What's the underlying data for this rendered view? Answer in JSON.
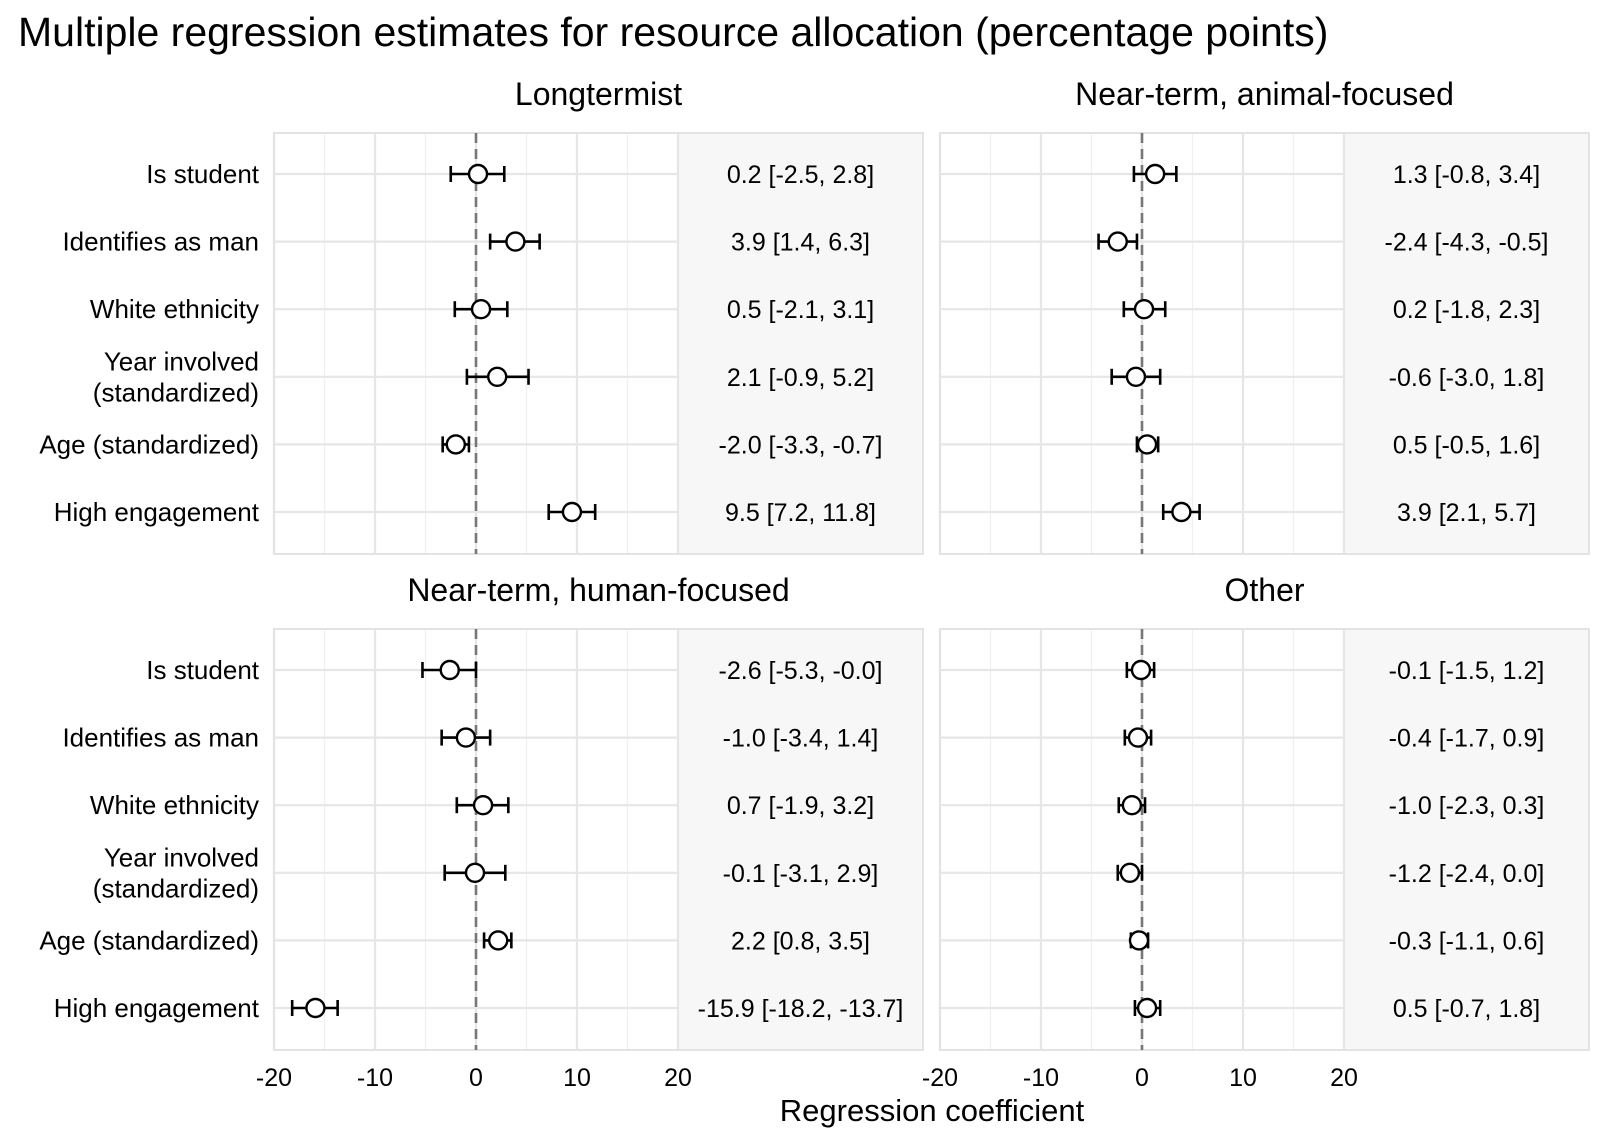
{
  "chart_data": {
    "type": "forest",
    "title": "Multiple regression estimates for resource allocation (percentage points)",
    "xlabel": "Regression coefficient",
    "xlim": [
      -20,
      20
    ],
    "xticks": [
      -20,
      -10,
      0,
      10,
      20
    ],
    "tick_labels": [
      "-20",
      "-10",
      "0",
      "10",
      "20"
    ],
    "reference_line": 0,
    "grid": true,
    "predictors": [
      [
        "Is student"
      ],
      [
        "Identifies as man"
      ],
      [
        "White ethnicity"
      ],
      [
        "Year involved",
        "(standardized)"
      ],
      [
        "Age (standardized)"
      ],
      [
        "High engagement"
      ]
    ],
    "panels": [
      {
        "title": "Longtermist",
        "estimates": [
          0.2,
          3.9,
          0.5,
          2.1,
          -2.0,
          9.5
        ],
        "lower": [
          -2.5,
          1.4,
          -2.1,
          -0.9,
          -3.3,
          7.2
        ],
        "upper": [
          2.8,
          6.3,
          3.1,
          5.2,
          -0.7,
          11.8
        ],
        "labels": [
          "0.2 [-2.5, 2.8]",
          "3.9 [1.4, 6.3]",
          "0.5 [-2.1, 3.1]",
          "2.1 [-0.9, 5.2]",
          "-2.0 [-3.3, -0.7]",
          "9.5 [7.2, 11.8]"
        ]
      },
      {
        "title": "Near-term, animal-focused",
        "estimates": [
          1.3,
          -2.4,
          0.2,
          -0.6,
          0.5,
          3.9
        ],
        "lower": [
          -0.8,
          -4.3,
          -1.8,
          -3.0,
          -0.5,
          2.1
        ],
        "upper": [
          3.4,
          -0.5,
          2.3,
          1.8,
          1.6,
          5.7
        ],
        "labels": [
          "1.3 [-0.8, 3.4]",
          "-2.4 [-4.3, -0.5]",
          "0.2 [-1.8, 2.3]",
          "-0.6 [-3.0, 1.8]",
          "0.5 [-0.5, 1.6]",
          "3.9 [2.1, 5.7]"
        ]
      },
      {
        "title": "Near-term, human-focused",
        "estimates": [
          -2.6,
          -1.0,
          0.7,
          -0.1,
          2.2,
          -15.9
        ],
        "lower": [
          -5.3,
          -3.4,
          -1.9,
          -3.1,
          0.8,
          -18.2
        ],
        "upper": [
          -0.0,
          1.4,
          3.2,
          2.9,
          3.5,
          -13.7
        ],
        "labels": [
          "-2.6 [-5.3, -0.0]",
          "-1.0 [-3.4, 1.4]",
          "0.7 [-1.9, 3.2]",
          "-0.1 [-3.1, 2.9]",
          "2.2 [0.8, 3.5]",
          "-15.9 [-18.2, -13.7]"
        ]
      },
      {
        "title": "Other",
        "estimates": [
          -0.1,
          -0.4,
          -1.0,
          -1.2,
          -0.3,
          0.5
        ],
        "lower": [
          -1.5,
          -1.7,
          -2.3,
          -2.4,
          -1.1,
          -0.7
        ],
        "upper": [
          1.2,
          0.9,
          0.3,
          0.0,
          0.6,
          1.8
        ],
        "labels": [
          "-0.1 [-1.5, 1.2]",
          "-0.4 [-1.7, 0.9]",
          "-1.0 [-2.3, 0.3]",
          "-1.2 [-2.4, 0.0]",
          "-0.3 [-1.1, 0.6]",
          "0.5 [-0.7, 1.8]"
        ]
      }
    ]
  },
  "colors": {
    "panel_background": "#ffffff",
    "estimate_background": "#f7f7f7",
    "grid_major": "#e6e6e6",
    "grid_minor": "#f0f0f0",
    "panel_border": "#e3e3e3",
    "reference_line": "#777777",
    "point_fill": "#ffffff",
    "ink": "#000000"
  }
}
